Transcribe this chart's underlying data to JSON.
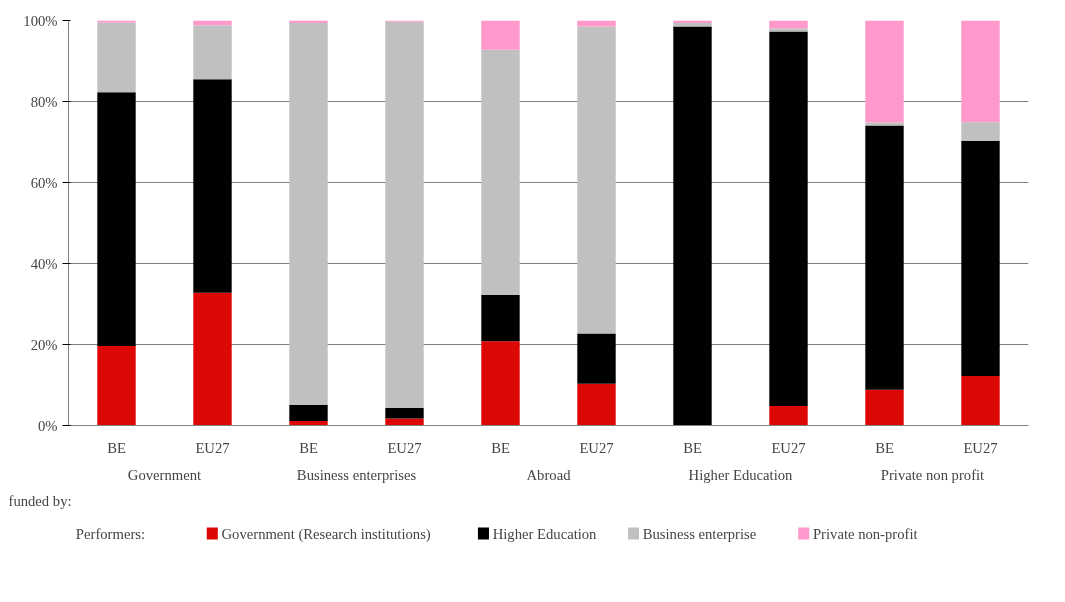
{
  "chart_data": {
    "type": "bar",
    "stacked": true,
    "categories": [
      "BE",
      "EU27",
      "BE",
      "EU27",
      "BE",
      "EU27",
      "BE",
      "EU27",
      "BE",
      "EU27"
    ],
    "xlabel": "funded by:",
    "legend_title": "Performers:",
    "annotations": [
      "Government",
      "Business enterprises",
      "Abroad",
      "Higher Education",
      "Private non profit"
    ],
    "series": [
      {
        "name": "Government (Research institutions)",
        "color": "#dd0806",
        "values": [
          19.6,
          32.8,
          1.1,
          1.7,
          20.8,
          10.3,
          0,
          4.8,
          8.8,
          12.2
        ]
      },
      {
        "name": "Higher Education",
        "color": "#000000",
        "values": [
          62.7,
          52.7,
          4.0,
          2.7,
          11.4,
          12.4,
          98.5,
          92.5,
          65.3,
          58.1
        ]
      },
      {
        "name": "Business enterprise",
        "color": "#c0c0c0",
        "values": [
          17.2,
          13.3,
          94.3,
          95.3,
          60.6,
          75.8,
          0.9,
          0.8,
          0.7,
          4.6
        ]
      },
      {
        "name": "Private non-profit",
        "color": "#ff99cc",
        "values": [
          0.5,
          1.2,
          0.6,
          0.3,
          7.2,
          1.5,
          0.6,
          1.9,
          25.2,
          25.1
        ]
      }
    ],
    "ylim": [
      0,
      100
    ],
    "yticks": [
      {
        "value": 0,
        "label": "0%"
      },
      {
        "value": 20,
        "label": "20%"
      },
      {
        "value": 40,
        "label": "40%"
      },
      {
        "value": 60,
        "label": "60%"
      },
      {
        "value": 80,
        "label": "80%"
      },
      {
        "value": 100,
        "label": "100%"
      }
    ],
    "grid": "y",
    "legend": "bottom"
  }
}
